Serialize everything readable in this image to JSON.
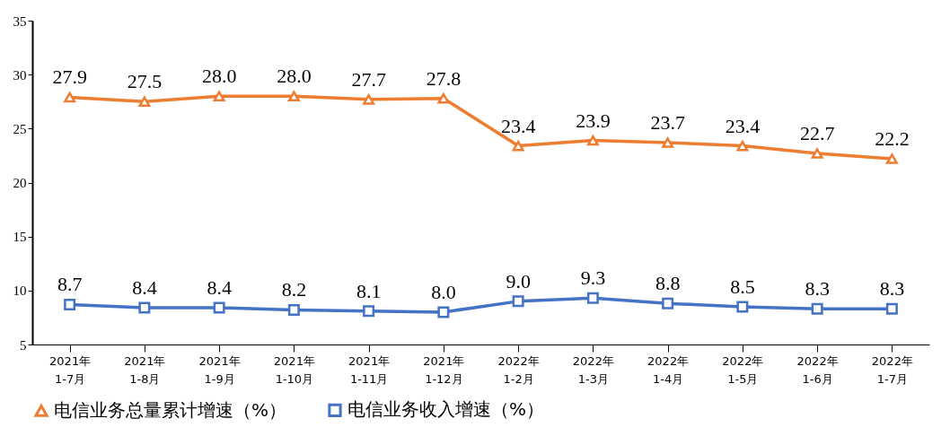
{
  "chart_data": {
    "type": "line",
    "categories": [
      "2021年\n1-7月",
      "2021年\n1-8月",
      "2021年\n1-9月",
      "2021年\n1-10月",
      "2021年\n1-11月",
      "2021年\n1-12月",
      "2022年\n1-2月",
      "2022年\n1-3月",
      "2022年\n1-4月",
      "2022年\n1-5月",
      "2022年\n1-6月",
      "2022年\n1-7月"
    ],
    "series": [
      {
        "name": "电信业务总量累计增速（%）",
        "color": "#ed7d31",
        "marker": "triangle",
        "line_style": "solid",
        "values": [
          27.9,
          27.5,
          28.0,
          28.0,
          27.7,
          27.8,
          23.4,
          23.9,
          23.7,
          23.4,
          22.7,
          22.2
        ],
        "value_labels": [
          "27.9",
          "27.5",
          "28.0",
          "28.0",
          "27.7",
          "27.8",
          "23.4",
          "23.9",
          "23.7",
          "23.4",
          "22.7",
          "22.2"
        ]
      },
      {
        "name": "电信业务收入增速（%）",
        "color": "#4472c4",
        "marker": "square",
        "line_style": "solid",
        "values": [
          8.7,
          8.4,
          8.4,
          8.2,
          8.1,
          8.0,
          9.0,
          9.3,
          8.8,
          8.5,
          8.3,
          8.3
        ],
        "value_labels": [
          "8.7",
          "8.4",
          "8.4",
          "8.2",
          "8.1",
          "8.0",
          "9.0",
          "9.3",
          "8.8",
          "8.5",
          "8.3",
          "8.3"
        ]
      }
    ],
    "ylim": [
      5,
      35
    ],
    "yticks": [
      5,
      10,
      15,
      20,
      25,
      30,
      35
    ],
    "grid": false,
    "legend": "bottom"
  }
}
